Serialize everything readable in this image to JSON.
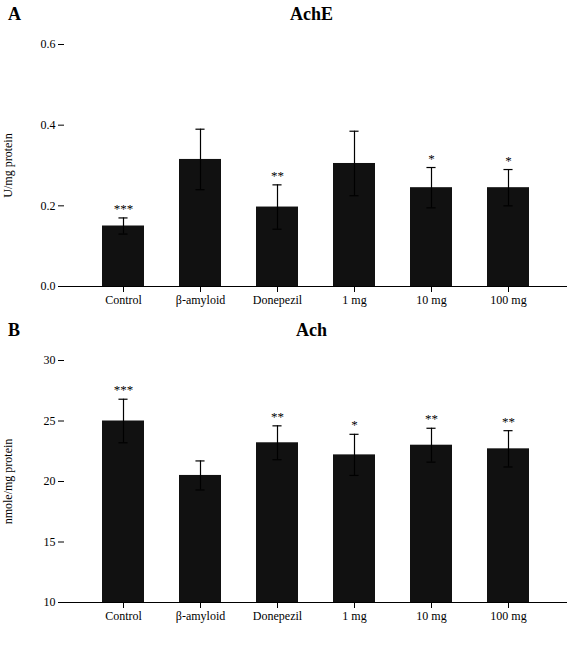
{
  "chart_data": [
    {
      "type": "bar",
      "title": "AchE",
      "ylabel": "U/mg protein",
      "categories": [
        "Control",
        "β-amyloid",
        "Donepezil",
        "1 mg",
        "10 mg",
        "100 mg"
      ],
      "values": [
        0.15,
        0.315,
        0.197,
        0.305,
        0.245,
        0.245
      ],
      "errors": [
        0.02,
        0.075,
        0.055,
        0.08,
        0.05,
        0.045
      ],
      "significance": [
        "***",
        null,
        "**",
        null,
        "*",
        "*"
      ],
      "annotations": [
        "A"
      ],
      "color": "#111111",
      "ylim": [
        0.0,
        0.6
      ],
      "yticks": [
        {
          "value": 0.0,
          "label": "0.0"
        },
        0.2,
        0.4,
        0.6
      ]
    },
    {
      "type": "bar",
      "title": "Ach",
      "ylabel": "nmole/mg protein",
      "categories": [
        "Control",
        "β-amyloid",
        "Donepezil",
        "1 mg",
        "10 mg",
        "100 mg"
      ],
      "values": [
        25.0,
        20.5,
        23.2,
        22.2,
        23.0,
        22.7
      ],
      "errors": [
        1.8,
        1.2,
        1.4,
        1.7,
        1.4,
        1.5
      ],
      "significance": [
        "***",
        null,
        "**",
        "*",
        "**",
        "**"
      ],
      "annotations": [
        "B"
      ],
      "color": "#111111",
      "ylim": [
        10,
        30
      ],
      "yticks": [
        10,
        15,
        20,
        25,
        30
      ]
    }
  ]
}
